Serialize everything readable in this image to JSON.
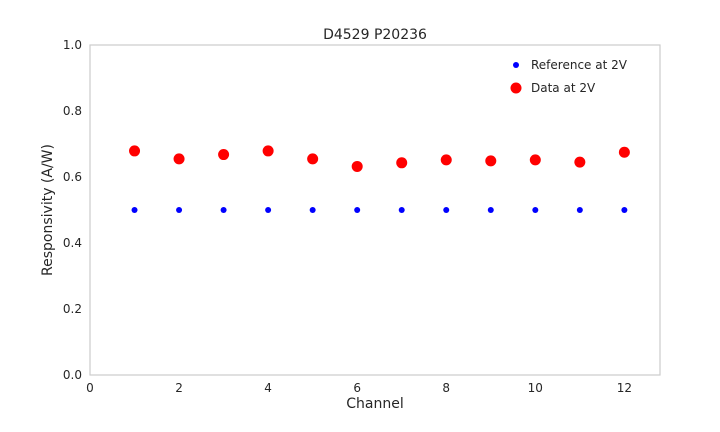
{
  "chart_data": {
    "type": "scatter",
    "title": "D4529 P20236",
    "xlabel": "Channel",
    "ylabel": "Responsivity (A/W)",
    "xlim": [
      0,
      12.8
    ],
    "ylim": [
      0.0,
      1.0
    ],
    "xticks": [
      0,
      2,
      4,
      6,
      8,
      10,
      12
    ],
    "yticks": [
      0.0,
      0.2,
      0.4,
      0.6,
      0.8,
      1.0
    ],
    "grid": false,
    "legend_position": "upper right",
    "frame_color": "#cccccc",
    "x": [
      1,
      2,
      3,
      4,
      5,
      6,
      7,
      8,
      9,
      10,
      11,
      12
    ],
    "series": [
      {
        "name": "Reference at 2V",
        "color": "#0000ff",
        "marker_size": 3,
        "values": [
          0.5,
          0.5,
          0.5,
          0.5,
          0.5,
          0.5,
          0.5,
          0.5,
          0.5,
          0.5,
          0.5,
          0.5
        ]
      },
      {
        "name": "Data at 2V",
        "color": "#ff0000",
        "marker_size": 5.5,
        "values": [
          0.679,
          0.655,
          0.668,
          0.679,
          0.655,
          0.632,
          0.643,
          0.652,
          0.649,
          0.652,
          0.645,
          0.675
        ]
      }
    ]
  }
}
